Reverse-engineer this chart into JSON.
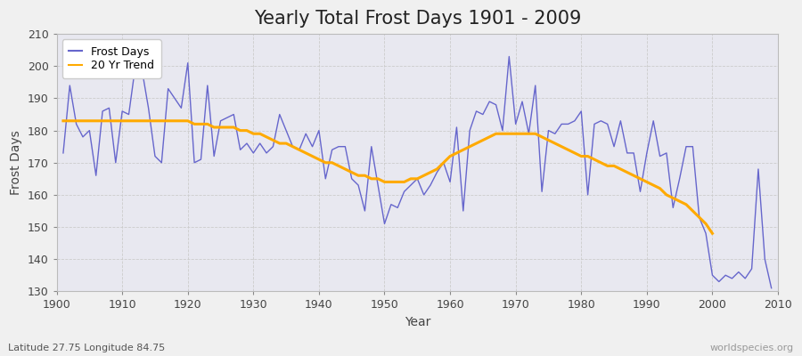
{
  "title": "Yearly Total Frost Days 1901 - 2009",
  "xlabel": "Year",
  "ylabel": "Frost Days",
  "subtitle": "Latitude 27.75 Longitude 84.75",
  "watermark": "worldspecies.org",
  "ylim": [
    130,
    210
  ],
  "xlim": [
    1900,
    2010
  ],
  "years": [
    1901,
    1902,
    1903,
    1904,
    1905,
    1906,
    1907,
    1908,
    1909,
    1910,
    1911,
    1912,
    1913,
    1914,
    1915,
    1916,
    1917,
    1918,
    1919,
    1920,
    1921,
    1922,
    1923,
    1924,
    1925,
    1926,
    1927,
    1928,
    1929,
    1930,
    1931,
    1932,
    1933,
    1934,
    1935,
    1936,
    1937,
    1938,
    1939,
    1940,
    1941,
    1942,
    1943,
    1944,
    1945,
    1946,
    1947,
    1948,
    1949,
    1950,
    1951,
    1952,
    1953,
    1954,
    1955,
    1956,
    1957,
    1958,
    1959,
    1960,
    1961,
    1962,
    1963,
    1964,
    1965,
    1966,
    1967,
    1968,
    1969,
    1970,
    1971,
    1972,
    1973,
    1974,
    1975,
    1976,
    1977,
    1978,
    1979,
    1980,
    1981,
    1982,
    1983,
    1984,
    1985,
    1986,
    1987,
    1988,
    1989,
    1990,
    1991,
    1992,
    1993,
    1994,
    1995,
    1996,
    1997,
    1998,
    1999,
    2000,
    2001,
    2002,
    2003,
    2004,
    2005,
    2006,
    2007,
    2008,
    2009
  ],
  "frost_days": [
    173,
    194,
    182,
    178,
    180,
    166,
    186,
    187,
    170,
    186,
    185,
    200,
    199,
    187,
    172,
    170,
    193,
    190,
    187,
    201,
    170,
    171,
    194,
    172,
    183,
    184,
    185,
    174,
    176,
    173,
    176,
    173,
    175,
    185,
    180,
    175,
    174,
    179,
    175,
    180,
    165,
    174,
    175,
    175,
    165,
    163,
    155,
    175,
    163,
    151,
    157,
    156,
    161,
    163,
    165,
    160,
    163,
    167,
    170,
    164,
    181,
    155,
    180,
    186,
    185,
    189,
    188,
    180,
    203,
    182,
    189,
    179,
    194,
    161,
    180,
    179,
    182,
    182,
    183,
    186,
    160,
    182,
    183,
    182,
    175,
    183,
    173,
    173,
    161,
    173,
    183,
    172,
    173,
    156,
    165,
    175,
    175,
    153,
    148,
    135,
    133,
    135,
    134,
    136,
    134,
    137,
    168,
    140,
    131
  ],
  "trend": [
    183,
    183,
    183,
    183,
    183,
    183,
    183,
    183,
    183,
    183,
    183,
    183,
    183,
    183,
    183,
    183,
    183,
    183,
    183,
    183,
    182,
    182,
    182,
    181,
    181,
    181,
    181,
    180,
    180,
    179,
    179,
    178,
    177,
    176,
    176,
    175,
    174,
    173,
    172,
    171,
    170,
    170,
    169,
    168,
    167,
    166,
    166,
    165,
    165,
    164,
    164,
    164,
    164,
    165,
    165,
    166,
    167,
    168,
    170,
    172,
    173,
    174,
    175,
    176,
    177,
    178,
    179,
    179,
    179,
    179,
    179,
    179,
    179,
    178,
    177,
    176,
    175,
    174,
    173,
    172,
    172,
    171,
    170,
    169,
    169,
    168,
    167,
    166,
    165,
    164,
    163,
    162,
    160,
    159,
    158,
    157,
    155,
    153,
    151,
    148,
    null,
    null,
    null,
    null,
    null,
    null,
    null,
    null,
    null
  ],
  "line_color": "#6666cc",
  "trend_color": "#ffaa00",
  "fig_bg_color": "#f0f0f0",
  "plot_bg_color": "#e8e8f0",
  "grid_color": "#cccccc",
  "title_fontsize": 15,
  "axis_fontsize": 10,
  "tick_fontsize": 9,
  "legend_fontsize": 9
}
